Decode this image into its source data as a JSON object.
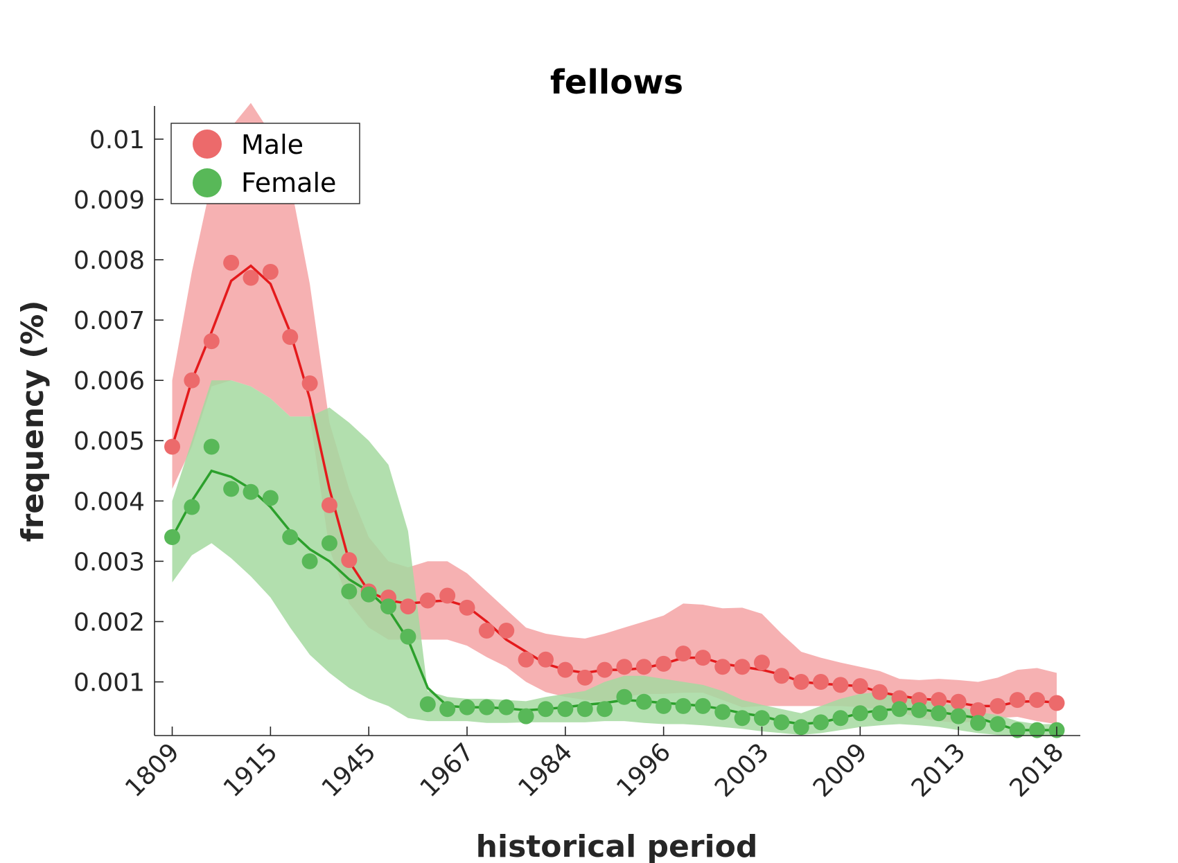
{
  "chart_data": {
    "type": "line",
    "title": "fellows",
    "xlabel": "historical period",
    "ylabel": "frequency (%)",
    "x_tick_labels": [
      "1809",
      "1915",
      "1945",
      "1967",
      "1984",
      "1996",
      "2003",
      "2009",
      "2013",
      "2018"
    ],
    "x_tick_positions": [
      1,
      6,
      11,
      16,
      21,
      26,
      31,
      36,
      41,
      46
    ],
    "xlim": [
      0.1,
      47.2
    ],
    "ylim": [
      0.00011,
      0.01055
    ],
    "y_ticks": [
      0.001,
      0.002,
      0.003,
      0.004,
      0.005,
      0.006,
      0.007,
      0.008,
      0.009,
      0.01
    ],
    "y_tick_labels": [
      "0.001",
      "0.002",
      "0.003",
      "0.004",
      "0.005",
      "0.006",
      "0.007",
      "0.008",
      "0.009",
      "0.01"
    ],
    "grid": false,
    "legend": {
      "placement": "top-left"
    },
    "x": [
      1,
      2,
      3,
      4,
      5,
      6,
      7,
      8,
      9,
      10,
      11,
      12,
      13,
      14,
      15,
      16,
      17,
      18,
      19,
      20,
      21,
      22,
      23,
      24,
      25,
      26,
      27,
      28,
      29,
      30,
      31,
      32,
      33,
      34,
      35,
      36,
      37,
      38,
      39,
      40,
      41,
      42,
      43,
      44,
      45,
      46
    ],
    "series": [
      {
        "name": "Male",
        "color": "#e41a1c",
        "marker_color": "#ec6a6b",
        "band_color": "#f4a3a4",
        "points": [
          0.0049,
          0.006,
          0.00665,
          0.00795,
          0.0077,
          0.0078,
          0.00672,
          0.00595,
          0.00393,
          0.00302,
          0.0025,
          0.0024,
          0.00225,
          0.00235,
          0.00243,
          0.00223,
          0.00185,
          0.00185,
          0.00137,
          0.00137,
          0.0012,
          0.00107,
          0.0012,
          0.00125,
          0.00125,
          0.0013,
          0.00147,
          0.0014,
          0.00125,
          0.00125,
          0.00132,
          0.0011,
          0.001,
          0.001,
          0.00095,
          0.00093,
          0.00083,
          0.00073,
          0.0007,
          0.0007,
          0.00067,
          0.00053,
          0.0006,
          0.0007,
          0.0007,
          0.00065
        ],
        "line": [
          0.0049,
          0.006,
          0.0068,
          0.00765,
          0.0079,
          0.0076,
          0.0068,
          0.0057,
          0.0042,
          0.003,
          0.0025,
          0.00235,
          0.0023,
          0.00233,
          0.00235,
          0.00225,
          0.002,
          0.0017,
          0.0015,
          0.0013,
          0.0012,
          0.00115,
          0.0012,
          0.0012,
          0.00123,
          0.0013,
          0.0014,
          0.0014,
          0.0013,
          0.00125,
          0.0012,
          0.00112,
          0.001,
          0.00097,
          0.00095,
          0.00093,
          0.00083,
          0.00077,
          0.00072,
          0.0007,
          0.00065,
          0.0006,
          0.0006,
          0.00067,
          0.00068,
          0.00066
        ],
        "band_upper": [
          0.006,
          0.0078,
          0.0093,
          0.0102,
          0.0106,
          0.0101,
          0.0093,
          0.0076,
          0.0053,
          0.0042,
          0.0034,
          0.003,
          0.0029,
          0.003,
          0.003,
          0.0028,
          0.0025,
          0.0022,
          0.0019,
          0.0018,
          0.00175,
          0.00172,
          0.0018,
          0.0019,
          0.002,
          0.0021,
          0.0023,
          0.00228,
          0.00222,
          0.00223,
          0.00213,
          0.0018,
          0.0015,
          0.0014,
          0.00132,
          0.00125,
          0.00118,
          0.00105,
          0.00103,
          0.00105,
          0.00103,
          0.001,
          0.00107,
          0.0012,
          0.00123,
          0.00115
        ],
        "band_lower": [
          0.0042,
          0.0049,
          0.0059,
          0.006,
          0.0059,
          0.0057,
          0.0054,
          0.0054,
          0.0032,
          0.0023,
          0.0019,
          0.0017,
          0.0017,
          0.0017,
          0.0017,
          0.0016,
          0.00141,
          0.00125,
          0.001,
          0.00083,
          0.00075,
          0.0007,
          0.00067,
          0.00075,
          0.0008,
          0.0008,
          0.00082,
          0.00082,
          0.0007,
          0.00058,
          0.0006,
          0.0006,
          0.0006,
          0.0006,
          0.0006,
          0.00058,
          0.00055,
          0.0005,
          0.0004,
          0.00035,
          0.00032,
          0.00035,
          0.0004,
          0.00042,
          0.00035,
          0.0003
        ]
      },
      {
        "name": "Female",
        "color": "#2ca02c",
        "marker_color": "#58b858",
        "band_color": "#a5d9a0",
        "points": [
          0.0034,
          0.0039,
          0.0049,
          0.0042,
          0.00415,
          0.00405,
          0.0034,
          0.003,
          0.0033,
          0.0025,
          0.00245,
          0.00225,
          0.00175,
          0.00063,
          0.00055,
          0.00058,
          0.00058,
          0.00058,
          0.00043,
          0.00055,
          0.00055,
          0.00055,
          0.00055,
          0.00075,
          0.00067,
          0.0006,
          0.0006,
          0.0006,
          0.0005,
          0.0004,
          0.0004,
          0.00033,
          0.00025,
          0.00033,
          0.0004,
          0.00048,
          0.00048,
          0.00055,
          0.00053,
          0.00048,
          0.00043,
          0.00032,
          0.0003,
          0.0002,
          0.0002,
          0.0002
        ],
        "line": [
          0.0034,
          0.004,
          0.0045,
          0.0044,
          0.0042,
          0.0039,
          0.0035,
          0.0032,
          0.003,
          0.0027,
          0.0025,
          0.0022,
          0.0017,
          0.0009,
          0.0006,
          0.00058,
          0.00058,
          0.00056,
          0.00053,
          0.00055,
          0.00058,
          0.00062,
          0.00065,
          0.0007,
          0.00068,
          0.00065,
          0.00063,
          0.0006,
          0.00055,
          0.00048,
          0.00043,
          0.00035,
          0.0003,
          0.00033,
          0.0004,
          0.00048,
          0.00053,
          0.00055,
          0.00055,
          0.0005,
          0.00045,
          0.0004,
          0.0003,
          0.0002,
          0.0002,
          0.0002
        ],
        "band_upper": [
          0.004,
          0.005,
          0.006,
          0.006,
          0.0059,
          0.0057,
          0.0054,
          0.0054,
          0.00555,
          0.0053,
          0.005,
          0.0046,
          0.0035,
          0.00085,
          0.00075,
          0.00072,
          0.00072,
          0.0007,
          0.00068,
          0.00075,
          0.0008,
          0.00085,
          0.001,
          0.0011,
          0.0011,
          0.00105,
          0.001,
          0.00095,
          0.00085,
          0.0007,
          0.00062,
          0.00055,
          0.00048,
          0.0006,
          0.00072,
          0.0008,
          0.00083,
          0.00075,
          0.0007,
          0.00065,
          0.0006,
          0.0005,
          0.00045,
          0.00035,
          0.0003,
          0.0003
        ],
        "band_lower": [
          0.00265,
          0.0031,
          0.0033,
          0.00305,
          0.00275,
          0.0024,
          0.0019,
          0.00145,
          0.00115,
          0.0009,
          0.00072,
          0.0006,
          0.0004,
          0.00035,
          0.00035,
          0.00035,
          0.00032,
          0.00032,
          0.00033,
          0.00033,
          0.00033,
          0.00033,
          0.00035,
          0.00035,
          0.00032,
          0.0003,
          0.0003,
          0.00028,
          0.00025,
          0.00022,
          0.00018,
          0.00015,
          0.00012,
          0.00015,
          0.0002,
          0.00025,
          0.00028,
          0.0003,
          0.00028,
          0.00025,
          0.0002,
          0.00015,
          0.00012,
          0.0001,
          0.0001,
          0.0001
        ]
      }
    ]
  }
}
